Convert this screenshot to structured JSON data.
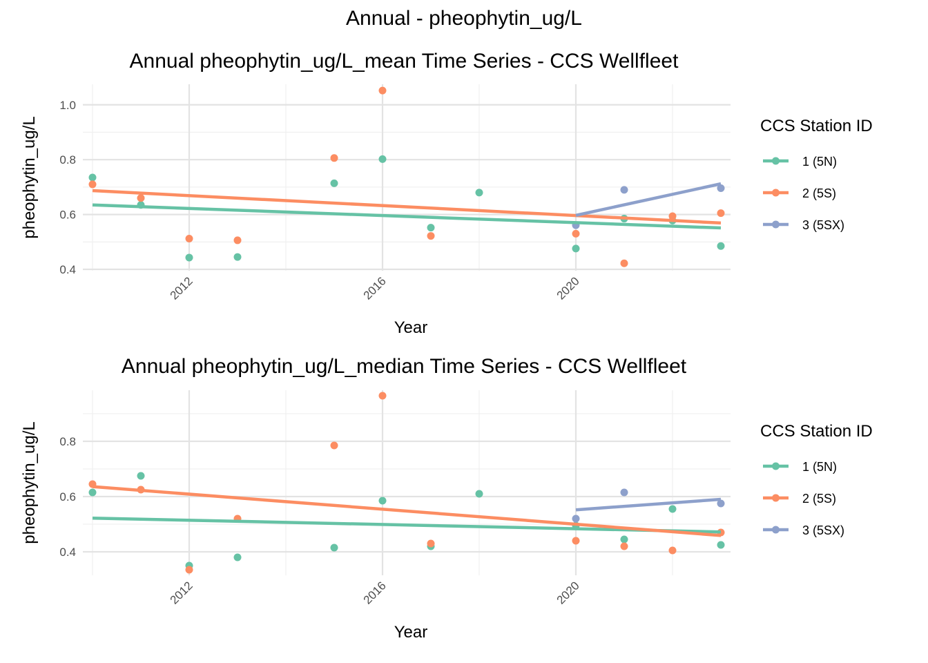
{
  "title": "Annual - pheophytin_ug/L",
  "legend": {
    "title": "CCS Station ID",
    "entries": [
      {
        "label": "1 (5N)",
        "color": "#66C2A5"
      },
      {
        "label": "2 (5S)",
        "color": "#FC8D62"
      },
      {
        "label": "3 (5SX)",
        "color": "#8DA0CB"
      }
    ]
  },
  "chart_data": [
    {
      "type": "scatter",
      "title": "Annual pheophytin_ug/L_mean Time Series - CCS Wellfleet",
      "xlabel": "Year",
      "ylabel": "pheophytin_ug/L",
      "xlim": [
        2009.8,
        2023.2
      ],
      "ylim": [
        0.395,
        1.075
      ],
      "xticks": [
        2012,
        2016,
        2020
      ],
      "yticks": [
        0.4,
        0.6,
        0.8,
        1.0
      ],
      "ytick_labels": [
        "0.4",
        "0.6",
        "0.8",
        "1.0"
      ],
      "grid": true,
      "legend_position": "right",
      "series": [
        {
          "name": "1 (5N)",
          "color": "#66C2A5",
          "points": [
            [
              2010,
              0.735
            ],
            [
              2011,
              0.635
            ],
            [
              2012,
              0.443
            ],
            [
              2013,
              0.445
            ],
            [
              2015,
              0.714
            ],
            [
              2016,
              0.802
            ],
            [
              2017,
              0.552
            ],
            [
              2018,
              0.68
            ],
            [
              2020,
              0.476
            ],
            [
              2021,
              0.585
            ],
            [
              2022,
              0.578
            ],
            [
              2023,
              0.485
            ]
          ],
          "trend": [
            [
              2010,
              0.635
            ],
            [
              2023,
              0.551
            ]
          ]
        },
        {
          "name": "2 (5S)",
          "color": "#FC8D62",
          "points": [
            [
              2010,
              0.71
            ],
            [
              2011,
              0.66
            ],
            [
              2012,
              0.512
            ],
            [
              2013,
              0.506
            ],
            [
              2015,
              0.806
            ],
            [
              2016,
              1.052
            ],
            [
              2017,
              0.522
            ],
            [
              2020,
              0.53
            ],
            [
              2021,
              0.422
            ],
            [
              2022,
              0.594
            ],
            [
              2023,
              0.605
            ]
          ],
          "trend": [
            [
              2010,
              0.687
            ],
            [
              2023,
              0.569
            ]
          ]
        },
        {
          "name": "3 (5SX)",
          "color": "#8DA0CB",
          "points": [
            [
              2020,
              0.561
            ],
            [
              2021,
              0.69
            ],
            [
              2023,
              0.696
            ]
          ],
          "trend": [
            [
              2020,
              0.597
            ],
            [
              2023,
              0.712
            ]
          ]
        }
      ]
    },
    {
      "type": "scatter",
      "title": "Annual pheophytin_ug/L_median Time Series - CCS Wellfleet",
      "xlabel": "Year",
      "ylabel": "pheophytin_ug/L",
      "xlim": [
        2009.8,
        2023.2
      ],
      "ylim": [
        0.315,
        0.985
      ],
      "xticks": [
        2012,
        2016,
        2020
      ],
      "yticks": [
        0.4,
        0.6,
        0.8
      ],
      "ytick_labels": [
        "0.4",
        "0.6",
        "0.8"
      ],
      "grid": true,
      "legend_position": "right",
      "series": [
        {
          "name": "1 (5N)",
          "color": "#66C2A5",
          "points": [
            [
              2010,
              0.615
            ],
            [
              2011,
              0.675
            ],
            [
              2012,
              0.35
            ],
            [
              2013,
              0.38
            ],
            [
              2015,
              0.415
            ],
            [
              2016,
              0.585
            ],
            [
              2017,
              0.42
            ],
            [
              2018,
              0.61
            ],
            [
              2020,
              0.495
            ],
            [
              2021,
              0.445
            ],
            [
              2022,
              0.555
            ],
            [
              2023,
              0.425
            ]
          ],
          "trend": [
            [
              2010,
              0.522
            ],
            [
              2023,
              0.472
            ]
          ]
        },
        {
          "name": "2 (5S)",
          "color": "#FC8D62",
          "points": [
            [
              2010,
              0.645
            ],
            [
              2011,
              0.625
            ],
            [
              2012,
              0.335
            ],
            [
              2013,
              0.52
            ],
            [
              2015,
              0.785
            ],
            [
              2016,
              0.965
            ],
            [
              2017,
              0.43
            ],
            [
              2020,
              0.44
            ],
            [
              2021,
              0.42
            ],
            [
              2022,
              0.405
            ],
            [
              2023,
              0.47
            ]
          ],
          "trend": [
            [
              2010,
              0.636
            ],
            [
              2023,
              0.459
            ]
          ]
        },
        {
          "name": "3 (5SX)",
          "color": "#8DA0CB",
          "points": [
            [
              2020,
              0.52
            ],
            [
              2021,
              0.615
            ],
            [
              2023,
              0.575
            ]
          ],
          "trend": [
            [
              2020,
              0.552
            ],
            [
              2023,
              0.59
            ]
          ]
        }
      ]
    }
  ]
}
